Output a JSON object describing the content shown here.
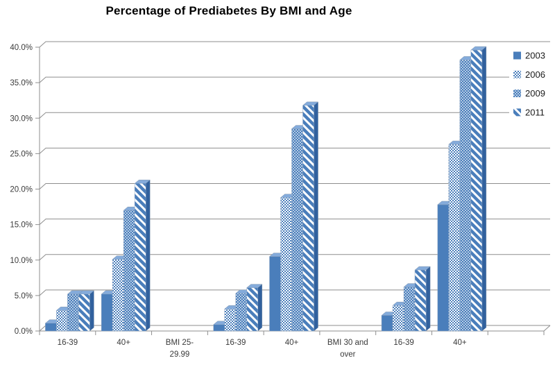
{
  "chart_data": {
    "type": "bar",
    "title": "Percentage of Prediabetes By BMI and Age",
    "categories": [
      "16-39",
      "40+",
      "BMI 25-\n29.99",
      "16-39",
      "40+",
      "BMI 30 and\nover",
      "16-39",
      "40+",
      ""
    ],
    "series": [
      {
        "name": "2003",
        "pattern": "solid",
        "values": [
          1.1,
          5.2,
          null,
          0.9,
          10.5,
          null,
          2.2,
          17.8,
          null
        ]
      },
      {
        "name": "2006",
        "pattern": "checker-light",
        "values": [
          2.9,
          10.1,
          null,
          3.1,
          18.8,
          null,
          3.6,
          26.3,
          null
        ]
      },
      {
        "name": "2009",
        "pattern": "checker-dense",
        "values": [
          5.2,
          17.0,
          null,
          5.3,
          28.5,
          null,
          6.2,
          38.2,
          null
        ]
      },
      {
        "name": "2011",
        "pattern": "diagonal-stripe",
        "values": [
          5.2,
          20.8,
          null,
          6.1,
          31.8,
          null,
          8.6,
          39.6,
          null
        ]
      }
    ],
    "ylim": [
      0,
      40
    ],
    "ytick_step": 5,
    "y_tick_labels": [
      "0.0%",
      "5.0%",
      "10.0%",
      "15.0%",
      "20.0%",
      "25.0%",
      "30.0%",
      "35.0%",
      "40.0%"
    ],
    "grid": true,
    "legend_position": "right",
    "legend_labels": [
      "2003",
      "2006",
      "2009",
      "2011"
    ],
    "colors": {
      "bar_front": "#4a7ebb",
      "bar_top": "#84abdb",
      "bar_side": "#31619e",
      "pattern_white": "#ffffff",
      "grid_line": "#8e8e8e",
      "axis_text": "#3a3a3a",
      "legend_text": "#1a1a1a",
      "title_text": "#000000",
      "background": "#ffffff"
    }
  }
}
